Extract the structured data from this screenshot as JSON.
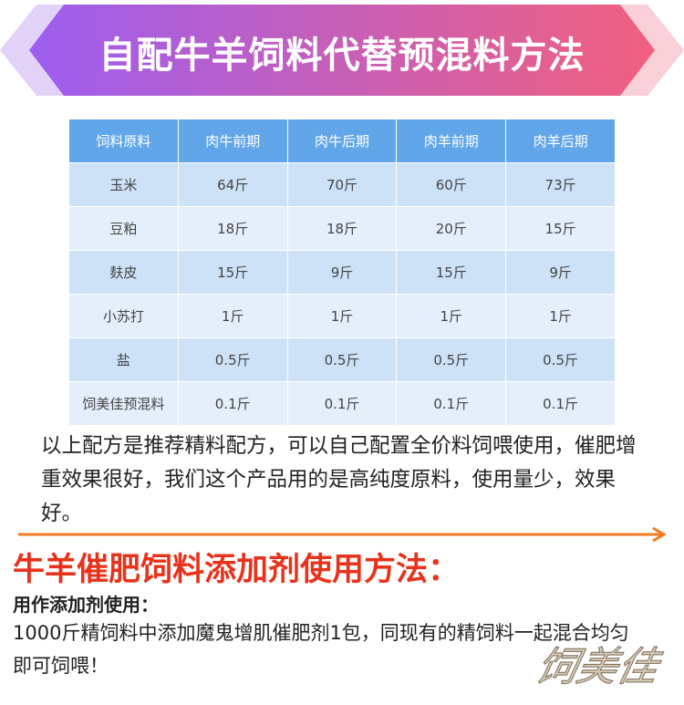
{
  "banner": {
    "title": "自配牛羊饲料代替预混料方法"
  },
  "table": {
    "header": [
      "饲料原料",
      "肉牛前期",
      "肉牛后期",
      "肉羊前期",
      "肉羊后期"
    ],
    "rows": [
      [
        "玉米",
        "64斤",
        "70斤",
        "60斤",
        "73斤"
      ],
      [
        "豆粕",
        "18斤",
        "18斤",
        "20斤",
        "15斤"
      ],
      [
        "麸皮",
        "15斤",
        "9斤",
        "15斤",
        "9斤"
      ],
      [
        "小苏打",
        "1斤",
        "1斤",
        "1斤",
        "1斤"
      ],
      [
        "盐",
        "0.5斤",
        "0.5斤",
        "0.5斤",
        "0.5斤"
      ],
      [
        "饲美佳预混料",
        "0.1斤",
        "0.1斤",
        "0.1斤",
        "0.1斤"
      ]
    ]
  },
  "note": "以上配方是推荐精料配方，可以自己配置全价料饲喂使用，催肥增重效果很好，我们这个产品用的是高纯度原料，使用量少，效果好。",
  "section": {
    "title": "牛羊催肥饲料添加剂使用方法：",
    "subtitle": "用作添加剂使用：",
    "body": "1000斤精饲料中添加魔鬼增肌催肥剂1包，同现有的精饲料一起混合均匀即可饲喂！"
  },
  "watermark": "饲美佳"
}
